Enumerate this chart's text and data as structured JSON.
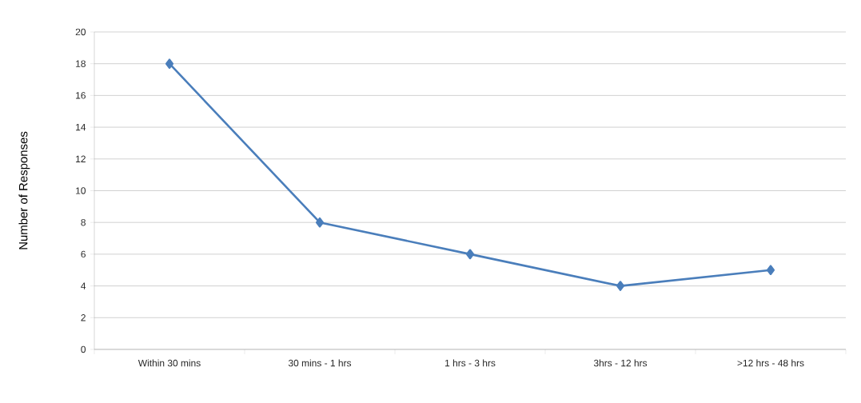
{
  "chart_data": {
    "type": "line",
    "ylabel": "Number of Responses",
    "categories": [
      "Within 30 mins",
      "30 mins - 1 hrs",
      "1 hrs - 3 hrs",
      "3hrs - 12 hrs",
      ">12 hrs - 48 hrs"
    ],
    "values": [
      18,
      8,
      6,
      4,
      5
    ],
    "color": "#4a7ebb",
    "ylim": [
      0,
      20
    ],
    "yticks": [
      0,
      2,
      4,
      6,
      8,
      10,
      12,
      14,
      16,
      18,
      20
    ],
    "grid": "y",
    "marker": "diamond",
    "line_style": "solid"
  }
}
